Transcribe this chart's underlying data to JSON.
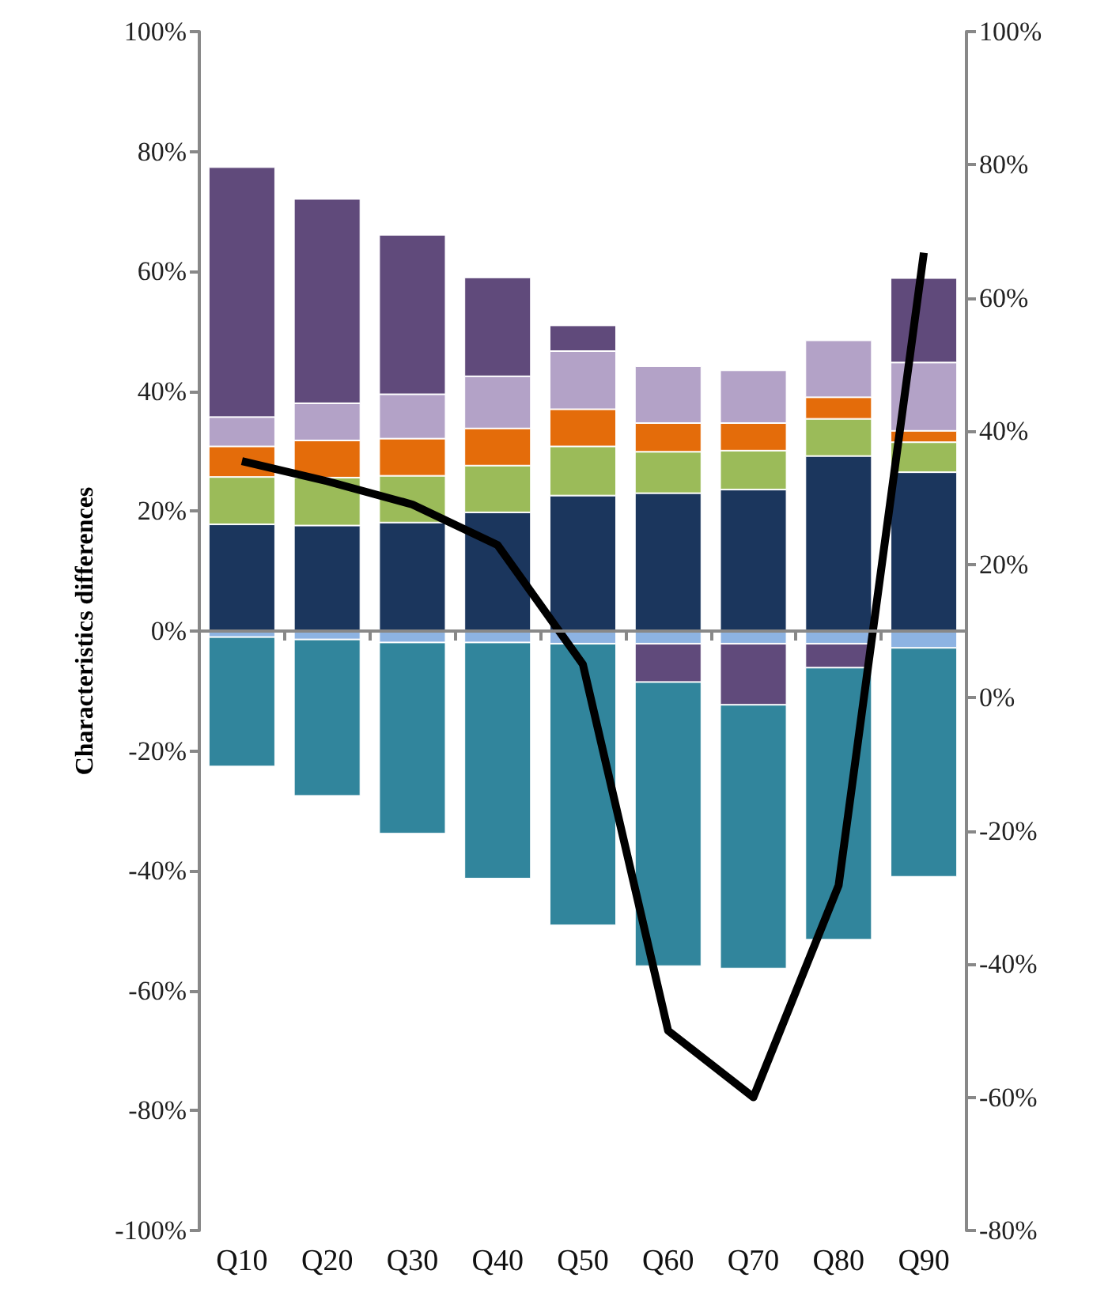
{
  "chart_data": {
    "type": "bar",
    "stacked": true,
    "ylabel": "Characteristics differences",
    "categories": [
      "Q10",
      "Q20",
      "Q30",
      "Q40",
      "Q50",
      "Q60",
      "Q70",
      "Q80",
      "Q90"
    ],
    "ylim": [
      -100,
      100
    ],
    "yticks": [
      {
        "value": -100,
        "label": "-100%"
      },
      {
        "value": -80,
        "label": "-80%"
      },
      {
        "value": -60,
        "label": "-60%"
      },
      {
        "value": -40,
        "label": "-40%"
      },
      {
        "value": -20,
        "label": "-20%"
      },
      {
        "value": 0,
        "label": "0%"
      },
      {
        "value": 20,
        "label": "20%"
      },
      {
        "value": 40,
        "label": "40%"
      },
      {
        "value": 60,
        "label": "60%"
      },
      {
        "value": 80,
        "label": "80%"
      },
      {
        "value": 100,
        "label": "100%"
      }
    ],
    "y2lim": [
      -80,
      100
    ],
    "y2ticks": [
      {
        "value": -80,
        "label": "-80%"
      },
      {
        "value": -60,
        "label": "-60%"
      },
      {
        "value": -40,
        "label": "-40%"
      },
      {
        "value": -20,
        "label": "-20%"
      },
      {
        "value": 0,
        "label": "0%"
      },
      {
        "value": 20,
        "label": "20%"
      },
      {
        "value": 40,
        "label": "40%"
      },
      {
        "value": 60,
        "label": "60%"
      },
      {
        "value": 80,
        "label": "80%"
      },
      {
        "value": 100,
        "label": "100%"
      }
    ],
    "series": [
      {
        "color": "#8db3e2",
        "values": [
          -1.0,
          -1.4,
          -1.9,
          -1.9,
          -2.1,
          -2.1,
          -2.1,
          -2.1,
          -2.8
        ]
      },
      {
        "color": "#1b365d",
        "values": [
          17.8,
          17.6,
          18.1,
          19.8,
          22.6,
          23.0,
          23.6,
          29.2,
          26.5
        ]
      },
      {
        "color": "#9bbb59",
        "values": [
          7.9,
          8.0,
          7.8,
          7.8,
          8.2,
          6.9,
          6.5,
          6.2,
          5.0
        ]
      },
      {
        "color": "#e46c0a",
        "values": [
          5.1,
          6.2,
          6.2,
          6.2,
          6.2,
          4.8,
          4.6,
          3.6,
          1.9
        ]
      },
      {
        "color": "#b3a2c7",
        "values": [
          4.9,
          6.2,
          7.4,
          8.7,
          9.7,
          9.5,
          8.8,
          9.5,
          11.4
        ]
      },
      {
        "color": "#604a7b",
        "values": [
          41.7,
          34.1,
          26.6,
          16.5,
          4.3,
          -6.4,
          -10.2,
          -4.0,
          14.1
        ]
      },
      {
        "color": "#31859c",
        "values": [
          -21.6,
          -26.1,
          -31.9,
          -39.4,
          -47.0,
          -47.4,
          -44.0,
          -45.4,
          -38.2
        ]
      },
      {
        "type": "line",
        "axis": "y2",
        "color": "#000000",
        "values": [
          35.5,
          32.5,
          29.0,
          22.9,
          5.0,
          -50.0,
          -60.0,
          -28.2,
          66.8
        ]
      }
    ]
  }
}
